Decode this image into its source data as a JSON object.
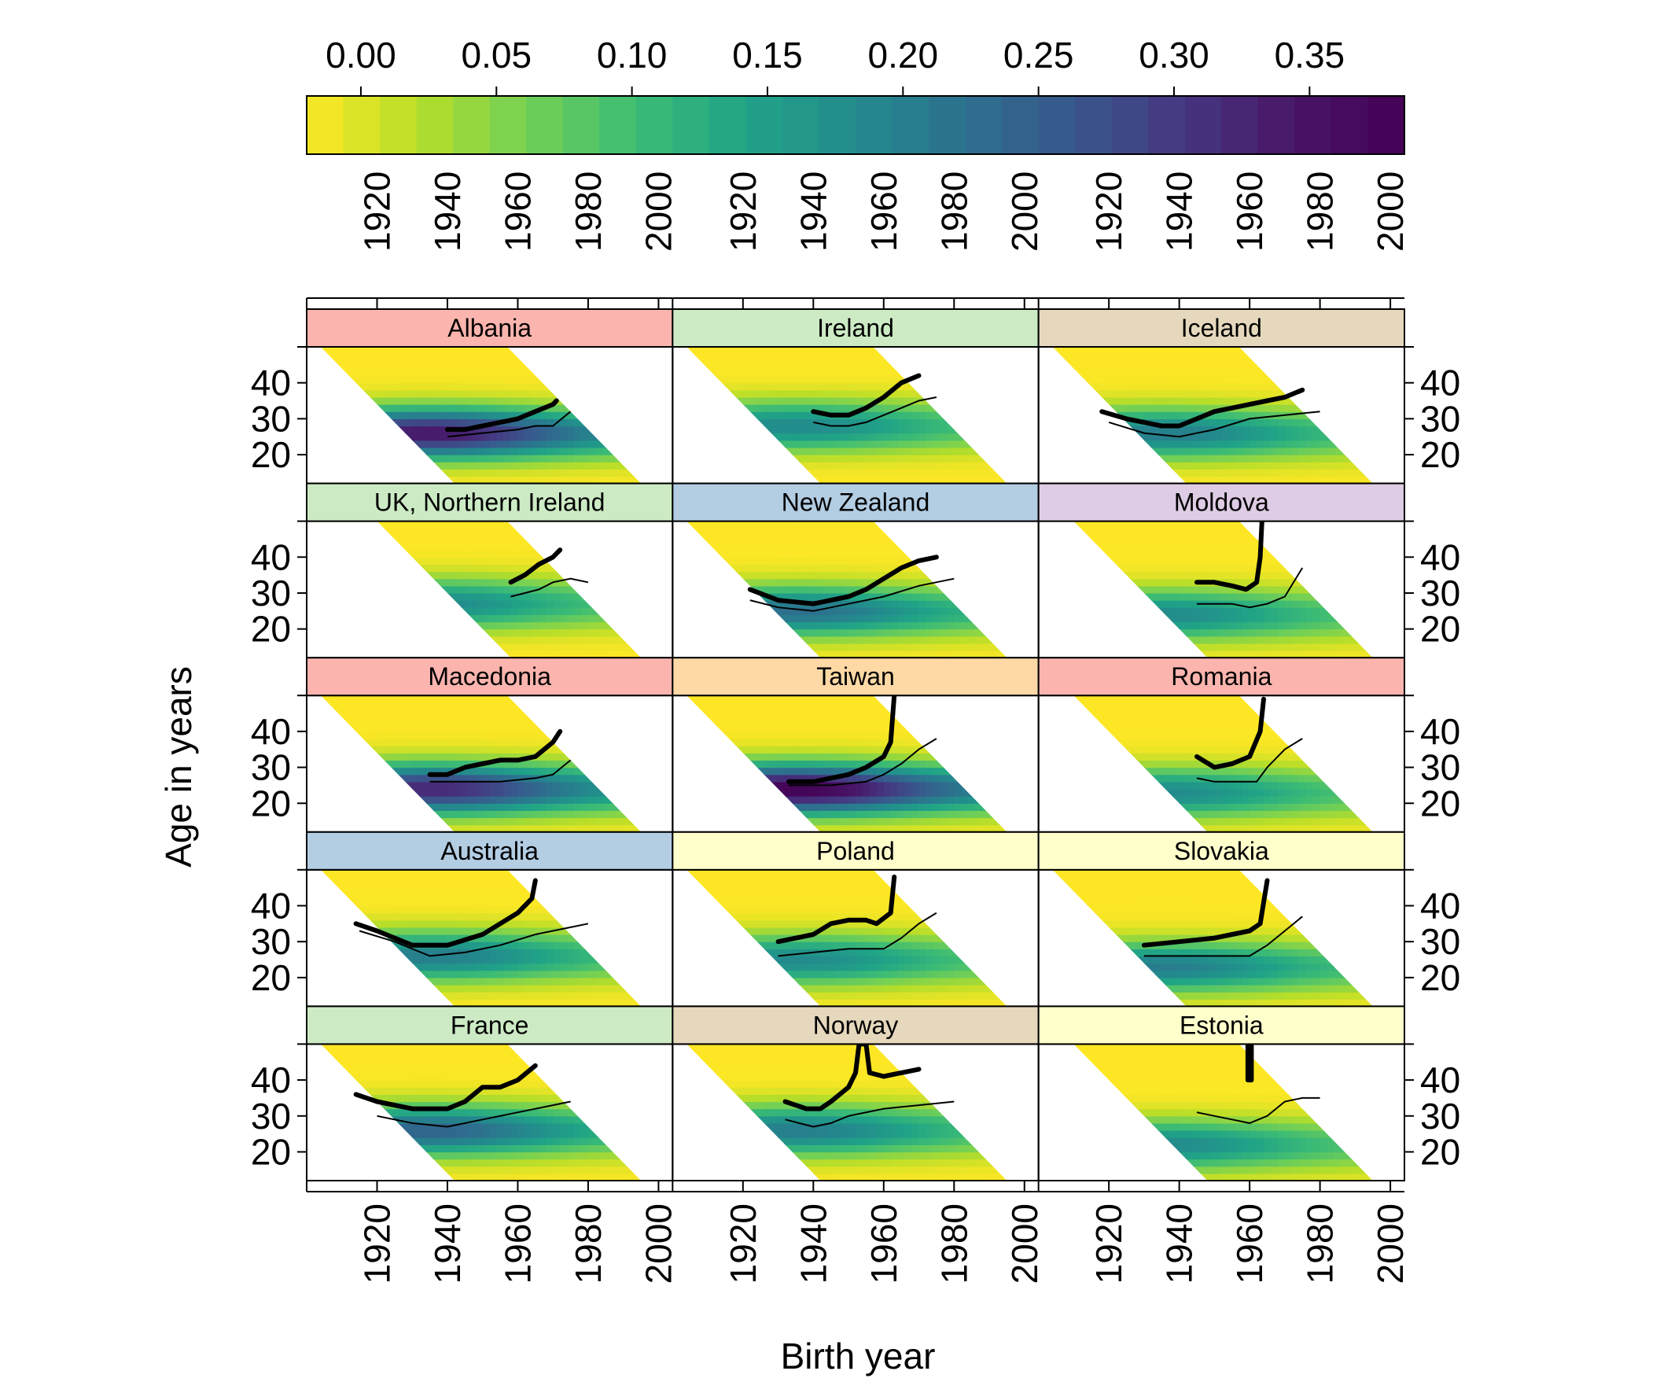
{
  "chart_data": {
    "type": "heatmap",
    "layout": {
      "columns": 3,
      "rows": 5
    },
    "xlabel": "Birth year",
    "ylabel": "Age in years",
    "xlim": [
      1900,
      2004
    ],
    "ylim": [
      12,
      50
    ],
    "x_ticks": [
      1920,
      1940,
      1960,
      1980,
      2000
    ],
    "y_ticks": [
      20,
      30,
      40
    ],
    "colorbar": {
      "min": -0.02,
      "max": 0.385,
      "ticks": [
        0.0,
        0.05,
        0.1,
        0.15,
        0.2,
        0.25,
        0.3,
        0.35
      ],
      "tick_labels": [
        "0.00",
        "0.05",
        "0.10",
        "0.15",
        "0.20",
        "0.25",
        "0.30",
        "0.35"
      ],
      "palette": [
        "#FDE725",
        "#B8DE29",
        "#73D055",
        "#3CBB75",
        "#20A387",
        "#238A8D",
        "#2D708E",
        "#39568C",
        "#453781",
        "#481567",
        "#440154"
      ]
    },
    "panels": [
      {
        "name": "Albania",
        "strip_color": "#FBB4AE",
        "cohort_range": [
          1904,
          1995
        ],
        "intensity": 0.9,
        "peak_age": 26,
        "thick_line": [
          [
            1940,
            27
          ],
          [
            1945,
            27
          ],
          [
            1950,
            28
          ],
          [
            1955,
            29
          ],
          [
            1960,
            30
          ],
          [
            1965,
            32
          ],
          [
            1970,
            34
          ],
          [
            1971,
            35
          ]
        ],
        "thin_line": [
          [
            1940,
            25
          ],
          [
            1950,
            26
          ],
          [
            1960,
            27
          ],
          [
            1965,
            28
          ],
          [
            1970,
            28
          ],
          [
            1975,
            32
          ]
        ]
      },
      {
        "name": "Ireland",
        "strip_color": "#CCEBC5",
        "cohort_range": [
          1904,
          1995
        ],
        "intensity": 0.5,
        "peak_age": 28,
        "thick_line": [
          [
            1940,
            32
          ],
          [
            1945,
            31
          ],
          [
            1950,
            31
          ],
          [
            1955,
            33
          ],
          [
            1960,
            36
          ],
          [
            1965,
            40
          ],
          [
            1970,
            42
          ]
        ],
        "thin_line": [
          [
            1940,
            29
          ],
          [
            1945,
            28
          ],
          [
            1950,
            28
          ],
          [
            1955,
            29
          ],
          [
            1960,
            31
          ],
          [
            1965,
            33
          ],
          [
            1970,
            35
          ],
          [
            1975,
            36
          ]
        ]
      },
      {
        "name": "Iceland",
        "strip_color": "#E5D8BD",
        "cohort_range": [
          1904,
          1995
        ],
        "intensity": 0.55,
        "peak_age": 26,
        "thick_line": [
          [
            1918,
            32
          ],
          [
            1925,
            30
          ],
          [
            1930,
            29
          ],
          [
            1935,
            28
          ],
          [
            1940,
            28
          ],
          [
            1945,
            30
          ],
          [
            1950,
            32
          ],
          [
            1955,
            33
          ],
          [
            1960,
            34
          ],
          [
            1965,
            35
          ],
          [
            1970,
            36
          ],
          [
            1975,
            38
          ]
        ],
        "thin_line": [
          [
            1920,
            29
          ],
          [
            1930,
            26
          ],
          [
            1940,
            25
          ],
          [
            1950,
            27
          ],
          [
            1960,
            30
          ],
          [
            1970,
            31
          ],
          [
            1980,
            32
          ]
        ]
      },
      {
        "name": "UK, Northern Ireland",
        "strip_color": "#CCEBC5",
        "cohort_range": [
          1920,
          1995
        ],
        "intensity": 0.5,
        "peak_age": 27,
        "thick_line": [
          [
            1958,
            33
          ],
          [
            1962,
            35
          ],
          [
            1966,
            38
          ],
          [
            1970,
            40
          ],
          [
            1972,
            42
          ]
        ],
        "thin_line": [
          [
            1958,
            29
          ],
          [
            1962,
            30
          ],
          [
            1966,
            31
          ],
          [
            1970,
            33
          ],
          [
            1975,
            34
          ],
          [
            1980,
            33
          ]
        ]
      },
      {
        "name": "New Zealand",
        "strip_color": "#B3CDE3",
        "cohort_range": [
          1904,
          1995
        ],
        "intensity": 0.6,
        "peak_age": 25,
        "thick_line": [
          [
            1922,
            31
          ],
          [
            1930,
            28
          ],
          [
            1940,
            27
          ],
          [
            1950,
            29
          ],
          [
            1955,
            31
          ],
          [
            1960,
            34
          ],
          [
            1965,
            37
          ],
          [
            1970,
            39
          ],
          [
            1975,
            40
          ]
        ],
        "thin_line": [
          [
            1922,
            28
          ],
          [
            1930,
            26
          ],
          [
            1940,
            25
          ],
          [
            1950,
            27
          ],
          [
            1960,
            29
          ],
          [
            1970,
            32
          ],
          [
            1980,
            34
          ]
        ]
      },
      {
        "name": "Moldova",
        "strip_color": "#DECBE4",
        "cohort_range": [
          1910,
          1995
        ],
        "intensity": 0.5,
        "peak_age": 24,
        "thick_line": [
          [
            1945,
            33
          ],
          [
            1950,
            33
          ],
          [
            1955,
            32
          ],
          [
            1959,
            31
          ],
          [
            1962,
            33
          ],
          [
            1963,
            40
          ],
          [
            1963.5,
            50
          ]
        ],
        "thin_line": [
          [
            1945,
            27
          ],
          [
            1955,
            27
          ],
          [
            1960,
            26
          ],
          [
            1965,
            27
          ],
          [
            1970,
            29
          ],
          [
            1975,
            37
          ]
        ]
      },
      {
        "name": "Macedonia",
        "strip_color": "#FBB4AE",
        "cohort_range": [
          1904,
          1995
        ],
        "intensity": 0.85,
        "peak_age": 24,
        "thick_line": [
          [
            1935,
            28
          ],
          [
            1940,
            28
          ],
          [
            1945,
            30
          ],
          [
            1950,
            31
          ],
          [
            1955,
            32
          ],
          [
            1960,
            32
          ],
          [
            1965,
            33
          ],
          [
            1970,
            37
          ],
          [
            1972,
            40
          ]
        ],
        "thin_line": [
          [
            1935,
            26
          ],
          [
            1945,
            26
          ],
          [
            1955,
            26
          ],
          [
            1965,
            27
          ],
          [
            1970,
            28
          ],
          [
            1975,
            32
          ]
        ]
      },
      {
        "name": "Taiwan",
        "strip_color": "#FED9A6",
        "cohort_range": [
          1904,
          1995
        ],
        "intensity": 1.0,
        "peak_age": 24,
        "thick_line": [
          [
            1933,
            26
          ],
          [
            1940,
            26
          ],
          [
            1945,
            27
          ],
          [
            1950,
            28
          ],
          [
            1955,
            30
          ],
          [
            1960,
            33
          ],
          [
            1962,
            37
          ],
          [
            1963,
            50
          ]
        ],
        "thin_line": [
          [
            1933,
            25
          ],
          [
            1945,
            25
          ],
          [
            1955,
            26
          ],
          [
            1960,
            28
          ],
          [
            1965,
            31
          ],
          [
            1970,
            35
          ],
          [
            1975,
            38
          ]
        ]
      },
      {
        "name": "Romania",
        "strip_color": "#FBB4AE",
        "cohort_range": [
          1910,
          1995
        ],
        "intensity": 0.5,
        "peak_age": 23,
        "thick_line": [
          [
            1945,
            33
          ],
          [
            1950,
            30
          ],
          [
            1955,
            31
          ],
          [
            1960,
            33
          ],
          [
            1963,
            40
          ],
          [
            1964,
            49
          ]
        ],
        "thin_line": [
          [
            1945,
            27
          ],
          [
            1950,
            26
          ],
          [
            1955,
            26
          ],
          [
            1962,
            26
          ],
          [
            1965,
            30
          ],
          [
            1970,
            35
          ],
          [
            1975,
            38
          ]
        ]
      },
      {
        "name": "Australia",
        "strip_color": "#B3CDE3",
        "cohort_range": [
          1904,
          1995
        ],
        "intensity": 0.55,
        "peak_age": 26,
        "thick_line": [
          [
            1914,
            35
          ],
          [
            1920,
            33
          ],
          [
            1930,
            29
          ],
          [
            1940,
            29
          ],
          [
            1950,
            32
          ],
          [
            1955,
            35
          ],
          [
            1960,
            38
          ],
          [
            1964,
            42
          ],
          [
            1965,
            47
          ]
        ],
        "thin_line": [
          [
            1915,
            33
          ],
          [
            1925,
            30
          ],
          [
            1935,
            26
          ],
          [
            1945,
            27
          ],
          [
            1955,
            29
          ],
          [
            1965,
            32
          ],
          [
            1975,
            34
          ],
          [
            1980,
            35
          ]
        ]
      },
      {
        "name": "Poland",
        "strip_color": "#FFFFCC",
        "cohort_range": [
          1904,
          1995
        ],
        "intensity": 0.5,
        "peak_age": 25,
        "thick_line": [
          [
            1930,
            30
          ],
          [
            1940,
            32
          ],
          [
            1945,
            35
          ],
          [
            1950,
            36
          ],
          [
            1955,
            36
          ],
          [
            1958,
            35
          ],
          [
            1962,
            38
          ],
          [
            1963,
            48
          ]
        ],
        "thin_line": [
          [
            1930,
            26
          ],
          [
            1940,
            27
          ],
          [
            1950,
            28
          ],
          [
            1960,
            28
          ],
          [
            1965,
            31
          ],
          [
            1970,
            35
          ],
          [
            1975,
            38
          ]
        ]
      },
      {
        "name": "Slovakia",
        "strip_color": "#FFFFCC",
        "cohort_range": [
          1904,
          1995
        ],
        "intensity": 0.55,
        "peak_age": 23,
        "thick_line": [
          [
            1930,
            29
          ],
          [
            1940,
            30
          ],
          [
            1950,
            31
          ],
          [
            1955,
            32
          ],
          [
            1960,
            33
          ],
          [
            1963,
            35
          ],
          [
            1965,
            47
          ]
        ],
        "thin_line": [
          [
            1930,
            26
          ],
          [
            1940,
            26
          ],
          [
            1950,
            26
          ],
          [
            1960,
            26
          ],
          [
            1965,
            29
          ],
          [
            1970,
            33
          ],
          [
            1975,
            37
          ]
        ]
      },
      {
        "name": "France",
        "strip_color": "#CCEBC5",
        "cohort_range": [
          1904,
          1995
        ],
        "intensity": 0.65,
        "peak_age": 26,
        "thick_line": [
          [
            1914,
            36
          ],
          [
            1920,
            34
          ],
          [
            1925,
            33
          ],
          [
            1930,
            32
          ],
          [
            1940,
            32
          ],
          [
            1945,
            34
          ],
          [
            1950,
            38
          ],
          [
            1955,
            38
          ],
          [
            1960,
            40
          ],
          [
            1965,
            44
          ]
        ],
        "thin_line": [
          [
            1920,
            30
          ],
          [
            1930,
            28
          ],
          [
            1940,
            27
          ],
          [
            1950,
            29
          ],
          [
            1960,
            31
          ],
          [
            1970,
            33
          ],
          [
            1975,
            34
          ]
        ]
      },
      {
        "name": "Norway",
        "strip_color": "#E5D8BD",
        "cohort_range": [
          1904,
          1995
        ],
        "intensity": 0.55,
        "peak_age": 26,
        "thick_line": [
          [
            1932,
            34
          ],
          [
            1938,
            32
          ],
          [
            1942,
            32
          ],
          [
            1945,
            34
          ],
          [
            1950,
            38
          ],
          [
            1952,
            42
          ],
          [
            1953,
            50
          ],
          [
            1955,
            50
          ],
          [
            1956,
            42
          ],
          [
            1960,
            41
          ],
          [
            1965,
            42
          ],
          [
            1970,
            43
          ]
        ],
        "thin_line": [
          [
            1932,
            29
          ],
          [
            1940,
            27
          ],
          [
            1945,
            28
          ],
          [
            1950,
            30
          ],
          [
            1960,
            32
          ],
          [
            1970,
            33
          ],
          [
            1980,
            34
          ]
        ]
      },
      {
        "name": "Estonia",
        "strip_color": "#FFFFCC",
        "cohort_range": [
          1910,
          1995
        ],
        "intensity": 0.5,
        "peak_age": 22,
        "thick_line": [
          [
            1959.5,
            50
          ],
          [
            1959.5,
            40
          ],
          [
            1960.5,
            40
          ],
          [
            1960.5,
            50
          ]
        ],
        "thin_line": [
          [
            1945,
            31
          ],
          [
            1950,
            30
          ],
          [
            1955,
            29
          ],
          [
            1960,
            28
          ],
          [
            1965,
            30
          ],
          [
            1970,
            34
          ],
          [
            1975,
            35
          ],
          [
            1980,
            35
          ]
        ]
      }
    ]
  }
}
